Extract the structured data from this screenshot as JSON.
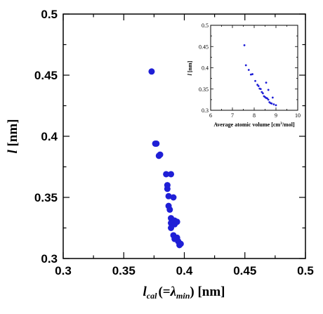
{
  "colors": {
    "marker": "#1f1fd6",
    "axis": "#000000",
    "background": "#ffffff"
  },
  "chart_data": [
    {
      "type": "scatter",
      "title": "",
      "xlabel": {
        "symbol": "l",
        "subscript": "cal",
        "paren": "(=",
        "lambda": "λ",
        "lambda_sub": "min",
        "close": ")",
        "unit": " [nm]"
      },
      "ylabel": {
        "symbol": "l",
        "unit": " [nm]"
      },
      "xlim": [
        0.3,
        0.5
      ],
      "ylim": [
        0.3,
        0.5
      ],
      "xticks": [
        0.3,
        0.35,
        0.4,
        0.45,
        0.5
      ],
      "xtick_labels": [
        "0.3",
        "0.35",
        "0.4",
        "0.45",
        "0.5"
      ],
      "yticks": [
        0.3,
        0.35,
        0.4,
        0.45,
        0.5
      ],
      "ytick_labels": [
        "0.3",
        "0.35",
        "0.4",
        "0.45",
        "0.5"
      ],
      "grid": false,
      "x": [
        0.373,
        0.376,
        0.377,
        0.379,
        0.38,
        0.385,
        0.389,
        0.386,
        0.386,
        0.387,
        0.391,
        0.387,
        0.388,
        0.389,
        0.392,
        0.389,
        0.392,
        0.394,
        0.389,
        0.391,
        0.394,
        0.392,
        0.395,
        0.397,
        0.396
      ],
      "y": [
        0.453,
        0.394,
        0.394,
        0.384,
        0.385,
        0.369,
        0.369,
        0.36,
        0.357,
        0.351,
        0.35,
        0.343,
        0.34,
        0.333,
        0.331,
        0.329,
        0.328,
        0.33,
        0.325,
        0.319,
        0.317,
        0.316,
        0.314,
        0.312,
        0.311
      ]
    },
    {
      "type": "scatter",
      "title": "",
      "xlabel": {
        "text": "Average atomic volume [cm",
        "sup": "3",
        "tail": "/mol]"
      },
      "ylabel": {
        "symbol": "l",
        "unit": " [nm]"
      },
      "xlim": [
        6,
        10
      ],
      "ylim": [
        0.3,
        0.5
      ],
      "xticks": [
        6,
        7,
        8,
        9,
        10
      ],
      "xtick_labels": [
        "6",
        "7",
        "8",
        "9",
        "10"
      ],
      "yticks": [
        0.3,
        0.35,
        0.4,
        0.45,
        0.5
      ],
      "ytick_labels": [
        "0.3",
        "0.35",
        "0.4",
        "0.45",
        "0.5"
      ],
      "grid": false,
      "x": [
        7.55,
        7.62,
        7.75,
        7.85,
        7.92,
        8.05,
        8.15,
        8.2,
        8.25,
        8.3,
        8.35,
        8.4,
        8.45,
        8.5,
        8.55,
        8.6,
        8.65,
        8.7,
        8.75,
        8.8,
        8.9,
        9.0,
        8.55,
        8.65,
        8.85
      ],
      "y": [
        0.453,
        0.406,
        0.395,
        0.384,
        0.385,
        0.369,
        0.36,
        0.357,
        0.351,
        0.35,
        0.343,
        0.34,
        0.333,
        0.331,
        0.329,
        0.328,
        0.325,
        0.319,
        0.317,
        0.316,
        0.314,
        0.312,
        0.365,
        0.348,
        0.33
      ]
    }
  ]
}
